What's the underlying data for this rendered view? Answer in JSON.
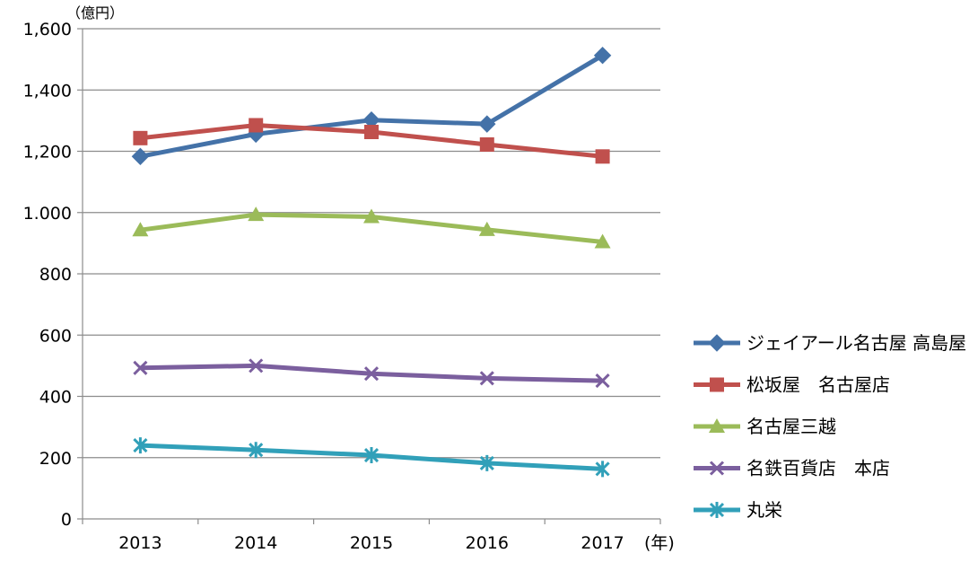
{
  "chart_data": {
    "type": "line",
    "title": "",
    "y_unit": "（億円）",
    "x_unit": "(年)",
    "categories": [
      "2013",
      "2014",
      "2015",
      "2016",
      "2017"
    ],
    "ylim": [
      0,
      1600
    ],
    "yticks": [
      0,
      200,
      400,
      600,
      800,
      1000,
      1200,
      1400,
      1600
    ],
    "ytick_labels": [
      "0",
      "200",
      "400",
      "600",
      "800",
      "1.000",
      "1,200",
      "1,400",
      "1,600"
    ],
    "grid": true,
    "legend_position": "right",
    "series": [
      {
        "name": "ジェイアール名古屋 高島屋",
        "values": [
          1183,
          1256,
          1302,
          1289,
          1513
        ],
        "color": "#4472a8",
        "marker": "diamond"
      },
      {
        "name": "松坂屋　名古屋店",
        "values": [
          1243,
          1285,
          1263,
          1222,
          1183
        ],
        "color": "#c0504d",
        "marker": "square"
      },
      {
        "name": "名古屋三越",
        "values": [
          943,
          993,
          986,
          944,
          904
        ],
        "color": "#9bbb59",
        "marker": "triangle"
      },
      {
        "name": "名鉄百貨店　本店",
        "values": [
          493,
          500,
          474,
          459,
          451
        ],
        "color": "#7b5f9e",
        "marker": "x"
      },
      {
        "name": "丸栄",
        "values": [
          240,
          225,
          208,
          182,
          163
        ],
        "color": "#31a0b9",
        "marker": "asterisk"
      }
    ]
  }
}
